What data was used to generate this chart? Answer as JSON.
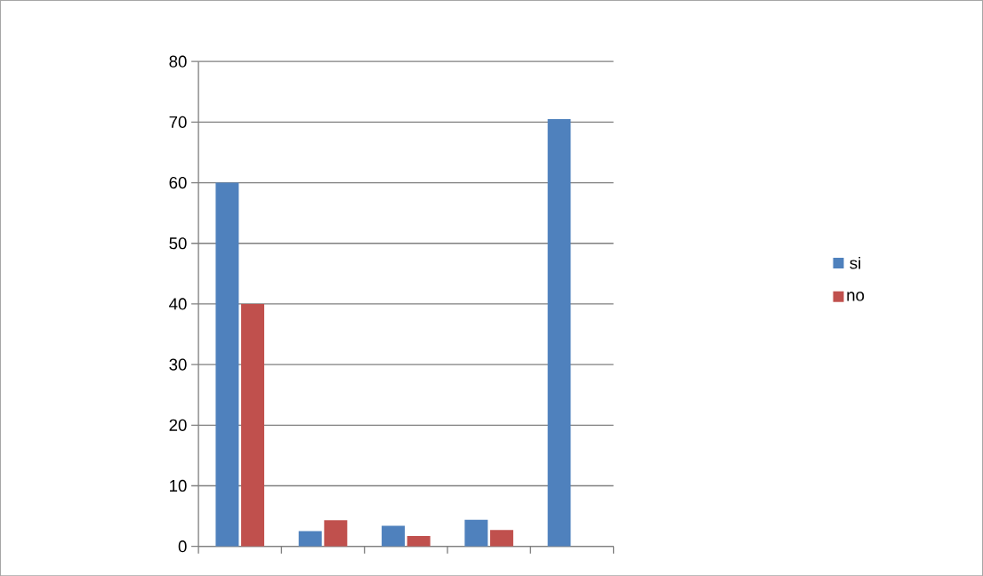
{
  "chart_data": {
    "type": "bar",
    "categories": [
      null,
      null,
      null,
      null,
      null
    ],
    "series": [
      {
        "name": "si",
        "color": "#4f81bd",
        "values": [
          60,
          2.5,
          3.4,
          4.4,
          70.5
        ]
      },
      {
        "name": "no",
        "color": "#c0504d",
        "values": [
          40,
          4.3,
          1.7,
          2.7,
          null
        ]
      }
    ],
    "ylim": [
      0,
      80
    ],
    "yticks": [
      0,
      10,
      20,
      30,
      40,
      50,
      60,
      70,
      80
    ],
    "grid": "y",
    "legend": "right"
  }
}
